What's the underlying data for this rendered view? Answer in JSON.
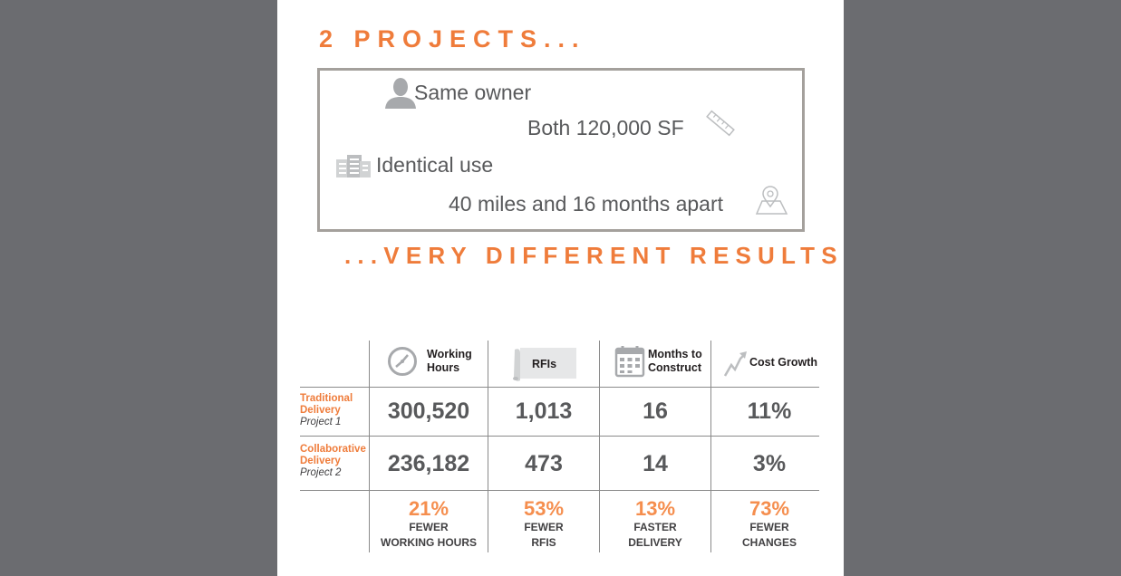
{
  "headline_top": "2 PROJECTS...",
  "headline_bottom": "...VERY DIFFERENT RESULTS",
  "facts": {
    "owner": "Same owner",
    "size": "Both 120,000 SF",
    "use": "Identical use",
    "distance": "40 miles and 16 months apart"
  },
  "columns": {
    "hours": "Working Hours",
    "rfis": "RFIs",
    "months": "Months to Construct",
    "cost": "Cost Growth"
  },
  "rows": {
    "traditional": {
      "label": "Traditional Delivery",
      "project": "Project 1",
      "hours": "300,520",
      "rfis": "1,013",
      "months": "16",
      "cost": "11%"
    },
    "collaborative": {
      "label": "Collaborative Delivery",
      "project": "Project 2",
      "hours": "236,182",
      "rfis": "473",
      "months": "14",
      "cost": "3%"
    }
  },
  "savings": {
    "hours": {
      "pct": "21%",
      "line1": "FEWER",
      "line2": "WORKING HOURS"
    },
    "rfis": {
      "pct": "53%",
      "line1": "FEWER",
      "line2": "RFIS"
    },
    "months": {
      "pct": "13%",
      "line1": "FASTER",
      "line2": "DELIVERY"
    },
    "cost": {
      "pct": "73%",
      "line1": "FEWER",
      "line2": "CHANGES"
    }
  },
  "colors": {
    "accent": "#ef7c3b",
    "text": "#58595b",
    "backdrop": "#6b6c70",
    "border": "#a4a09c"
  }
}
